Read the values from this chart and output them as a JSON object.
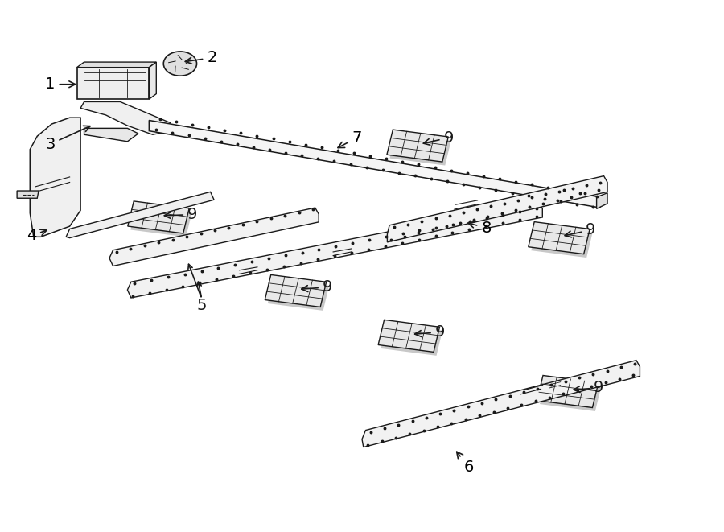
{
  "bg_color": "#ffffff",
  "line_color": "#1a1a1a",
  "label_color": "#000000",
  "fig_width": 9.0,
  "fig_height": 6.61,
  "dpi": 100,
  "font_size": 14
}
